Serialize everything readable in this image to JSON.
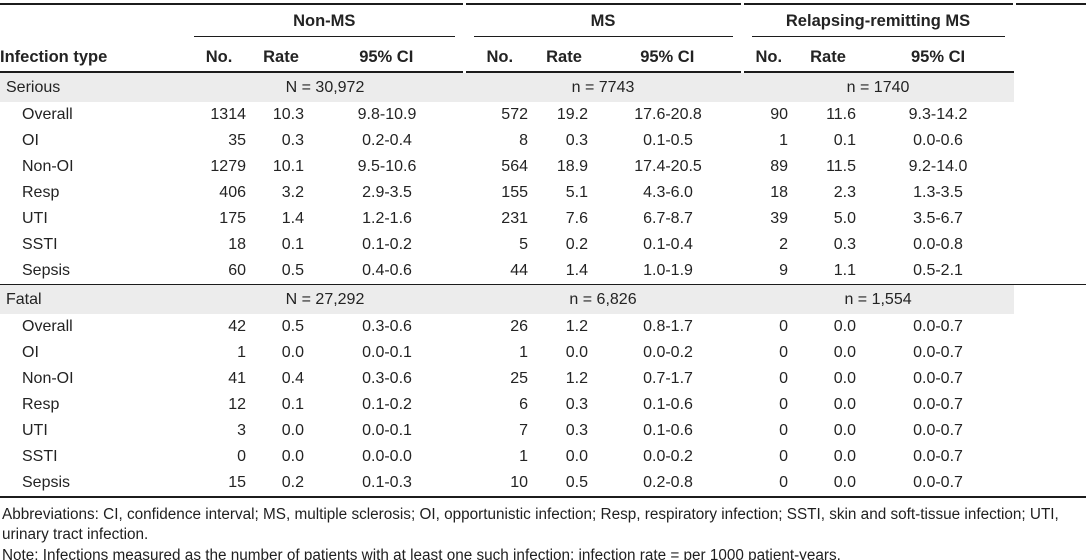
{
  "table": {
    "row_header": "Infection type",
    "groups": [
      {
        "label": "Non-MS",
        "columns": [
          "No.",
          "Rate",
          "95% CI"
        ]
      },
      {
        "label": "MS",
        "columns": [
          "No.",
          "Rate",
          "95% CI"
        ]
      },
      {
        "label": "Relapsing-remitting MS",
        "columns": [
          "No.",
          "Rate",
          "95% CI"
        ]
      }
    ],
    "sections": [
      {
        "label": "Serious",
        "group_totals": [
          "N = 30,972",
          "n = 7743",
          "n = 1740"
        ],
        "rows": [
          {
            "label": "Overall",
            "cells": [
              [
                "1314",
                "10.3",
                "9.8-10.9"
              ],
              [
                "572",
                "19.2",
                "17.6-20.8"
              ],
              [
                "90",
                "11.6",
                "9.3-14.2"
              ]
            ]
          },
          {
            "label": "OI",
            "cells": [
              [
                "35",
                "0.3",
                "0.2-0.4"
              ],
              [
                "8",
                "0.3",
                "0.1-0.5"
              ],
              [
                "1",
                "0.1",
                "0.0-0.6"
              ]
            ]
          },
          {
            "label": "Non-OI",
            "cells": [
              [
                "1279",
                "10.1",
                "9.5-10.6"
              ],
              [
                "564",
                "18.9",
                "17.4-20.5"
              ],
              [
                "89",
                "11.5",
                "9.2-14.0"
              ]
            ]
          },
          {
            "label": "Resp",
            "cells": [
              [
                "406",
                "3.2",
                "2.9-3.5"
              ],
              [
                "155",
                "5.1",
                "4.3-6.0"
              ],
              [
                "18",
                "2.3",
                "1.3-3.5"
              ]
            ]
          },
          {
            "label": "UTI",
            "cells": [
              [
                "175",
                "1.4",
                "1.2-1.6"
              ],
              [
                "231",
                "7.6",
                "6.7-8.7"
              ],
              [
                "39",
                "5.0",
                "3.5-6.7"
              ]
            ]
          },
          {
            "label": "SSTI",
            "cells": [
              [
                "18",
                "0.1",
                "0.1-0.2"
              ],
              [
                "5",
                "0.2",
                "0.1-0.4"
              ],
              [
                "2",
                "0.3",
                "0.0-0.8"
              ]
            ]
          },
          {
            "label": "Sepsis",
            "cells": [
              [
                "60",
                "0.5",
                "0.4-0.6"
              ],
              [
                "44",
                "1.4",
                "1.0-1.9"
              ],
              [
                "9",
                "1.1",
                "0.5-2.1"
              ]
            ]
          }
        ]
      },
      {
        "label": "Fatal",
        "group_totals": [
          "N = 27,292",
          "n = 6,826",
          "n = 1,554"
        ],
        "rows": [
          {
            "label": "Overall",
            "cells": [
              [
                "42",
                "0.5",
                "0.3-0.6"
              ],
              [
                "26",
                "1.2",
                "0.8-1.7"
              ],
              [
                "0",
                "0.0",
                "0.0-0.7"
              ]
            ]
          },
          {
            "label": "OI",
            "cells": [
              [
                "1",
                "0.0",
                "0.0-0.1"
              ],
              [
                "1",
                "0.0",
                "0.0-0.2"
              ],
              [
                "0",
                "0.0",
                "0.0-0.7"
              ]
            ]
          },
          {
            "label": "Non-OI",
            "cells": [
              [
                "41",
                "0.4",
                "0.3-0.6"
              ],
              [
                "25",
                "1.2",
                "0.7-1.7"
              ],
              [
                "0",
                "0.0",
                "0.0-0.7"
              ]
            ]
          },
          {
            "label": "Resp",
            "cells": [
              [
                "12",
                "0.1",
                "0.1-0.2"
              ],
              [
                "6",
                "0.3",
                "0.1-0.6"
              ],
              [
                "0",
                "0.0",
                "0.0-0.7"
              ]
            ]
          },
          {
            "label": "UTI",
            "cells": [
              [
                "3",
                "0.0",
                "0.0-0.1"
              ],
              [
                "7",
                "0.3",
                "0.1-0.6"
              ],
              [
                "0",
                "0.0",
                "0.0-0.7"
              ]
            ]
          },
          {
            "label": "SSTI",
            "cells": [
              [
                "0",
                "0.0",
                "0.0-0.0"
              ],
              [
                "1",
                "0.0",
                "0.0-0.2"
              ],
              [
                "0",
                "0.0",
                "0.0-0.7"
              ]
            ]
          },
          {
            "label": "Sepsis",
            "cells": [
              [
                "15",
                "0.2",
                "0.1-0.3"
              ],
              [
                "10",
                "0.5",
                "0.2-0.8"
              ],
              [
                "0",
                "0.0",
                "0.0-0.7"
              ]
            ]
          }
        ]
      }
    ]
  },
  "footnotes": {
    "abbreviations": "Abbreviations: CI, confidence interval; MS, multiple sclerosis; OI, opportunistic infection; Resp, respiratory infection; SSTI, skin and soft-tissue infection; UTI, urinary tract infection.",
    "note": "Note: Infections measured as the number of patients with at least one such infection; infection rate = per 1000 patient-years."
  }
}
